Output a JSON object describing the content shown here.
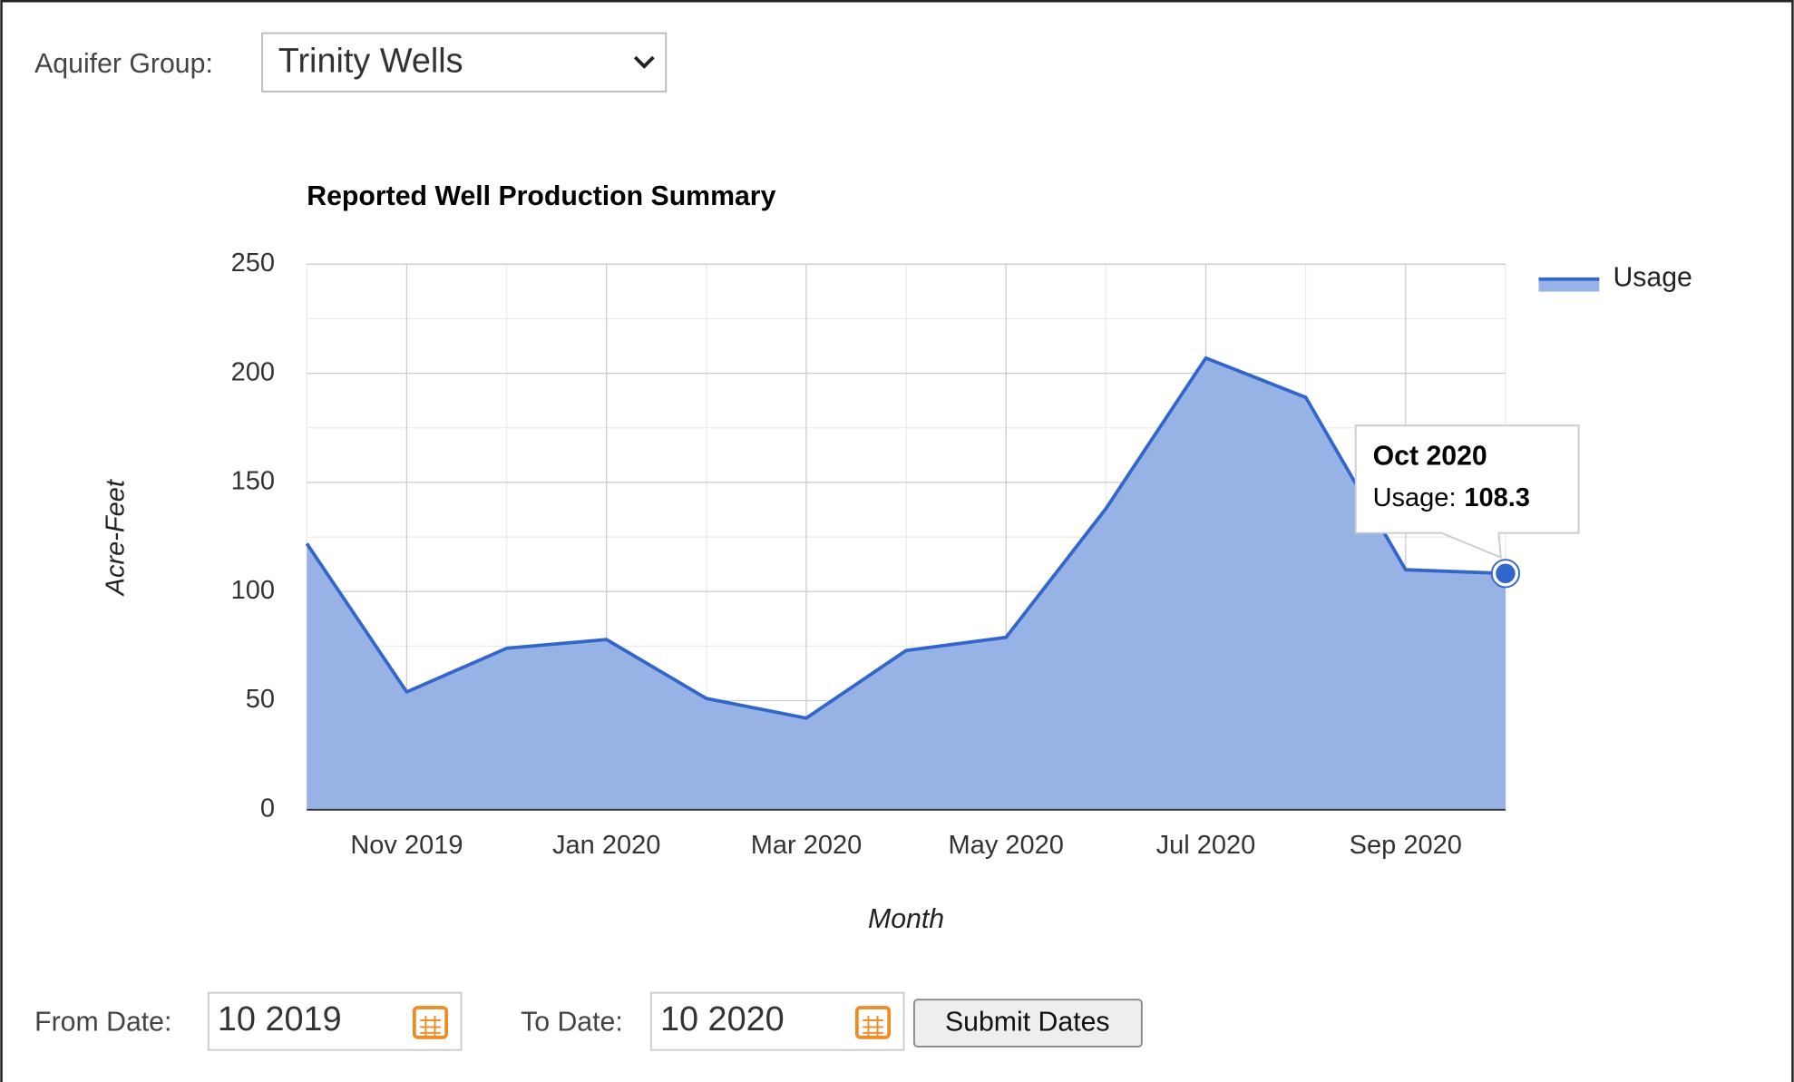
{
  "form": {
    "aquifer_label": "Aquifer Group:",
    "aquifer_value": "Trinity Wells",
    "from_label": "From Date:",
    "from_value": "10 2019",
    "to_label": "To Date:",
    "to_value": "10 2020",
    "submit": "Submit Dates"
  },
  "chart_data": {
    "type": "area",
    "title": "Reported Well Production Summary",
    "x_label": "Month",
    "y_label": "Acre-Feet",
    "categories": [
      null,
      "Nov 2019",
      null,
      "Jan 2020",
      null,
      "Mar 2020",
      null,
      "May 2020",
      null,
      "Jul 2020",
      null,
      "Sep 2020",
      null
    ],
    "series": [
      {
        "name": "Usage",
        "color": "#3366cc",
        "fill": "#97b3e6",
        "values": [
          122,
          54,
          74,
          78,
          51,
          42,
          73,
          79,
          138,
          207,
          189,
          110,
          108.3
        ]
      }
    ],
    "ylim": [
      0,
      250
    ],
    "yticks": [
      0,
      50,
      100,
      150,
      200,
      250
    ],
    "yminor": [
      25,
      75,
      125,
      175,
      225
    ],
    "grid": true,
    "legend": "right",
    "tooltip": {
      "title": "Oct 2020",
      "label": "Usage:",
      "index": 12
    }
  }
}
